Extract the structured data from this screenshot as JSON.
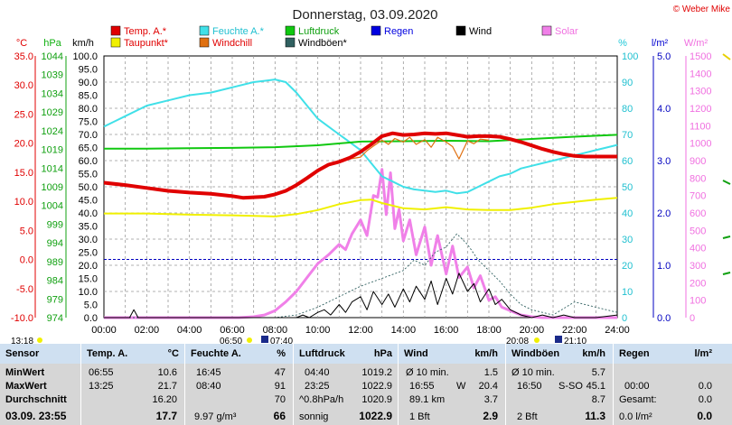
{
  "header": {
    "title": "Donnerstag, 03.09.2020",
    "copyright": "© Weber Mike"
  },
  "legend": [
    {
      "label": "Temp. A.*",
      "color": "#e00000"
    },
    {
      "label": "Feuchte A.*",
      "color": "#40e0e8"
    },
    {
      "label": "Luftdruck",
      "color": "#10c810"
    },
    {
      "label": "Regen",
      "color": "#0000e0"
    },
    {
      "label": "Wind",
      "color": "#000000"
    },
    {
      "label": "Solar",
      "color": "#f080e8"
    },
    {
      "label": "Taupunkt*",
      "color": "#f0f000"
    },
    {
      "label": "Windchill",
      "color": "#e07010"
    },
    {
      "label": "Windböen*",
      "color": "#306060"
    }
  ],
  "axis_units": {
    "temp": "°C",
    "pressure": "hPa",
    "wind": "km/h",
    "humidity": "%",
    "rain": "l/m²",
    "solar": "W/m²"
  },
  "chart_data": {
    "type": "line",
    "x_range": [
      "00:00",
      "24:00"
    ],
    "x_ticks": [
      "00:00",
      "02:00",
      "04:00",
      "06:00",
      "08:00",
      "10:00",
      "12:00",
      "14:00",
      "16:00",
      "18:00",
      "20:00",
      "22:00",
      "24:00"
    ],
    "axes": {
      "temp_c": {
        "ticks": [
          "35.0",
          "30.0",
          "25.0",
          "20.0",
          "15.0",
          "10.0",
          "5.0",
          "0.0",
          "-5.0",
          "-10.0"
        ],
        "range": [
          -10,
          35
        ]
      },
      "pressure_hpa": {
        "ticks": [
          "1044",
          "1039",
          "1034",
          "1029",
          "1024",
          "1019",
          "1014",
          "1009",
          "1004",
          "999",
          "994",
          "989",
          "984",
          "979",
          "974"
        ],
        "range": [
          974,
          1044
        ]
      },
      "wind_kmh": {
        "ticks": [
          "100.0",
          "95.0",
          "90.0",
          "85.0",
          "80.0",
          "75.0",
          "70.0",
          "65.0",
          "60.0",
          "55.0",
          "50.0",
          "45.0",
          "40.0",
          "35.0",
          "30.0",
          "25.0",
          "20.0",
          "15.0",
          "10.0",
          "5.0",
          "0.0"
        ],
        "range": [
          0,
          100
        ]
      },
      "humidity_pct": {
        "ticks": [
          "100",
          "90",
          "80",
          "70",
          "60",
          "50",
          "40",
          "30",
          "20",
          "10",
          "0"
        ],
        "range": [
          0,
          100
        ]
      },
      "rain_lm2": {
        "ticks": [
          "5.0",
          "4.0",
          "3.0",
          "2.0",
          "1.0",
          "0.0"
        ],
        "range": [
          0,
          5
        ]
      },
      "solar_wm2": {
        "ticks": [
          "1500",
          "1400",
          "1300",
          "1200",
          "1100",
          "1000",
          "900",
          "800",
          "700",
          "600",
          "500",
          "400",
          "300",
          "200",
          "100",
          "0"
        ],
        "range": [
          0,
          1500
        ]
      }
    },
    "series": [
      {
        "name": "Temp. A.*",
        "axis": "temp_c",
        "x": [
          0,
          1,
          2,
          3,
          4,
          5,
          6,
          6.5,
          7,
          7.5,
          8,
          8.5,
          9,
          9.5,
          10,
          10.5,
          11,
          11.5,
          12,
          12.5,
          13,
          13.5,
          14,
          14.5,
          15,
          15.5,
          16,
          16.5,
          17,
          17.5,
          18,
          18.5,
          19,
          19.5,
          20,
          20.5,
          21,
          21.5,
          22,
          22.5,
          23,
          23.5,
          24
        ],
        "y": [
          13.2,
          12.8,
          12.3,
          11.8,
          11.5,
          11.3,
          10.9,
          10.6,
          10.7,
          10.8,
          11.2,
          11.8,
          12.8,
          14,
          15.3,
          16.3,
          16.8,
          17.5,
          18.5,
          19.8,
          21.2,
          21.7,
          21.4,
          21.5,
          21.7,
          21.6,
          21.7,
          21.4,
          21.1,
          21.2,
          21.2,
          21.1,
          20.7,
          20.2,
          19.6,
          19,
          18.5,
          18.1,
          17.8,
          17.7,
          17.7,
          17.7,
          17.7
        ]
      },
      {
        "name": "Feuchte A.*",
        "axis": "humidity_pct",
        "x": [
          0,
          1,
          2,
          3,
          4,
          5,
          6,
          7,
          7.5,
          8,
          8.5,
          9,
          9.5,
          10,
          10.5,
          11,
          11.5,
          12,
          12.5,
          13,
          13.5,
          14,
          14.5,
          15,
          15.5,
          16,
          16.5,
          17,
          17.5,
          18,
          18.5,
          19,
          19.5,
          20,
          20.5,
          21,
          21.5,
          22,
          22.5,
          23,
          23.5,
          24
        ],
        "y": [
          73,
          77,
          81,
          83,
          85,
          86,
          88,
          90,
          90.5,
          91,
          90,
          86,
          81,
          76,
          73,
          70,
          67,
          64,
          59,
          54,
          52,
          50,
          49,
          48.5,
          48,
          48.5,
          47.5,
          48,
          50,
          52,
          54,
          55,
          57,
          58,
          59,
          60,
          61,
          62,
          63,
          64,
          65,
          66
        ]
      },
      {
        "name": "Luftdruck",
        "axis": "pressure_hpa",
        "x": [
          0,
          2,
          4,
          6,
          8,
          10,
          12,
          14,
          16,
          18,
          20,
          22,
          24
        ],
        "y": [
          1019.2,
          1019.2,
          1019.3,
          1019.4,
          1019.6,
          1020.1,
          1021.1,
          1021.2,
          1021.3,
          1021.2,
          1021.8,
          1022.4,
          1022.9
        ]
      },
      {
        "name": "Taupunkt*",
        "axis": "temp_c",
        "x": [
          0,
          2,
          4,
          6,
          8,
          9,
          10,
          11,
          12,
          12.5,
          13,
          14,
          15,
          16,
          17,
          18,
          19,
          20,
          21,
          22,
          23,
          24
        ],
        "y": [
          7.9,
          7.9,
          7.7,
          7.6,
          7.4,
          7.8,
          8.5,
          9.5,
          10.2,
          10.3,
          9.7,
          8.8,
          8.6,
          9,
          8.6,
          8.5,
          8.5,
          8.9,
          9.5,
          9.9,
          10.3,
          10.6
        ]
      },
      {
        "name": "Windchill",
        "axis": "temp_c",
        "x": [
          11.5,
          12,
          12.3,
          12.6,
          13,
          13.3,
          13.6,
          14,
          14.3,
          14.6,
          15,
          15.3,
          15.6,
          16,
          16.3,
          16.6,
          17,
          17.3,
          17.6,
          18
        ],
        "y": [
          17.3,
          17.6,
          18.7,
          19.5,
          20.5,
          19.8,
          20.8,
          20.2,
          21,
          19.8,
          20.6,
          19.3,
          21,
          20.2,
          19.4,
          17.3,
          20.4,
          19.9,
          20.7,
          20.5
        ]
      },
      {
        "name": "Wind",
        "axis": "wind_kmh",
        "x": [
          0,
          1.2,
          1.4,
          1.6,
          2,
          6,
          8,
          8.5,
          9,
          9.3,
          9.6,
          10,
          10.3,
          10.6,
          11,
          11.3,
          11.6,
          12,
          12.3,
          12.6,
          13,
          13.3,
          13.6,
          14,
          14.3,
          14.6,
          15,
          15.3,
          15.6,
          16,
          16.3,
          16.6,
          17,
          17.3,
          17.6,
          18,
          18.3,
          18.6,
          19,
          19.5,
          20,
          20.5,
          21,
          21.5,
          22,
          23,
          24
        ],
        "y": [
          0,
          0,
          3,
          0,
          0,
          0,
          0,
          0,
          0,
          1,
          0,
          2,
          3,
          1,
          5,
          2,
          6,
          8,
          3,
          10,
          5,
          9,
          4,
          11,
          6,
          12,
          7,
          14,
          5,
          15,
          9,
          17,
          10,
          13,
          6,
          11,
          5,
          7,
          3,
          1,
          0,
          1,
          0,
          1,
          0,
          0,
          1
        ]
      },
      {
        "name": "Windböen*",
        "axis": "wind_kmh",
        "x": [
          0,
          8,
          9,
          10,
          11,
          12,
          13,
          14,
          14.5,
          15,
          15.5,
          16,
          16.5,
          17,
          17.5,
          18,
          18.5,
          19,
          19.5,
          20,
          20.5,
          21,
          22,
          23,
          24
        ],
        "y": [
          0,
          0,
          1,
          4,
          8,
          12,
          15,
          18,
          22,
          20,
          25,
          27,
          32,
          28,
          22,
          18,
          14,
          9,
          5,
          3,
          2,
          1,
          6,
          4,
          2
        ]
      },
      {
        "name": "Solar",
        "axis": "solar_wm2",
        "x": [
          0,
          6.3,
          7,
          7.5,
          8,
          8.5,
          9,
          9.5,
          10,
          10.5,
          11,
          11.3,
          11.6,
          12,
          12.3,
          12.6,
          12.8,
          13,
          13.2,
          13.4,
          13.6,
          13.8,
          14,
          14.3,
          14.6,
          15,
          15.3,
          15.6,
          16,
          16.3,
          16.6,
          17,
          17.3,
          17.6,
          18,
          18.3,
          18.6,
          19,
          19.5,
          20,
          20.5,
          21,
          24
        ],
        "y": [
          0,
          0,
          5,
          15,
          40,
          90,
          150,
          230,
          310,
          360,
          420,
          390,
          480,
          560,
          470,
          700,
          690,
          850,
          590,
          830,
          510,
          620,
          440,
          560,
          360,
          520,
          300,
          470,
          250,
          410,
          230,
          290,
          170,
          240,
          100,
          120,
          60,
          40,
          15,
          5,
          0,
          0,
          0
        ]
      }
    ]
  },
  "labels": {
    "corner_time": "13:18",
    "sunrise": "06:50",
    "sunrise_moon": "07:40",
    "sunset": "20:08",
    "sunset_moon": "21:10"
  },
  "table": {
    "sensor": {
      "hdr": "Sensor",
      "rows": [
        "MinWert",
        "MaxWert",
        "Durchschnitt"
      ],
      "date": "03.09.  23:55"
    },
    "temp": {
      "hdr": "Temp. A.",
      "unit": "°C",
      "rows": [
        [
          "06:55",
          "10.6"
        ],
        [
          "13:25",
          "21.7"
        ],
        [
          "",
          "16.20"
        ]
      ],
      "current": "17.7"
    },
    "feuchte": {
      "hdr": "Feuchte A.",
      "unit": "%",
      "rows": [
        [
          "16:45",
          "47"
        ],
        [
          "08:40",
          "91"
        ],
        [
          "",
          "70"
        ]
      ],
      "abs": "9.97 g/m³",
      "current": "66"
    },
    "luftdruck": {
      "hdr": "Luftdruck",
      "unit": "hPa",
      "rows": [
        [
          "04:40",
          "1019.2"
        ],
        [
          "23:25",
          "1022.9"
        ],
        [
          "^0.8hPa/h",
          "1020.9"
        ]
      ],
      "weather": "sonnig",
      "current": "1022.9"
    },
    "wind": {
      "hdr": "Wind",
      "unit": "km/h",
      "rows": [
        [
          "Ø 10 min.",
          "",
          "1.5"
        ],
        [
          "16:55",
          "W",
          "20.4"
        ],
        [
          "89.1 km",
          "",
          "3.7"
        ]
      ],
      "bft": "1 Bft",
      "current": "2.9"
    },
    "boeen": {
      "hdr": "Windböen",
      "unit": "km/h",
      "rows": [
        [
          "Ø 10 min.",
          "",
          "5.7"
        ],
        [
          "16:50",
          "S-SO",
          "45.1"
        ],
        [
          "",
          "",
          "8.7"
        ]
      ],
      "bft": "2 Bft",
      "current": "11.3"
    },
    "regen": {
      "hdr": "Regen",
      "unit": "l/m²",
      "rows": [
        [
          "",
          "",
          ""
        ],
        [
          "00:00",
          "",
          "0.0"
        ],
        [
          "Gesamt:",
          "",
          "0.0"
        ]
      ],
      "current_label": "0.0 l/m²",
      "current": "0.0"
    }
  }
}
